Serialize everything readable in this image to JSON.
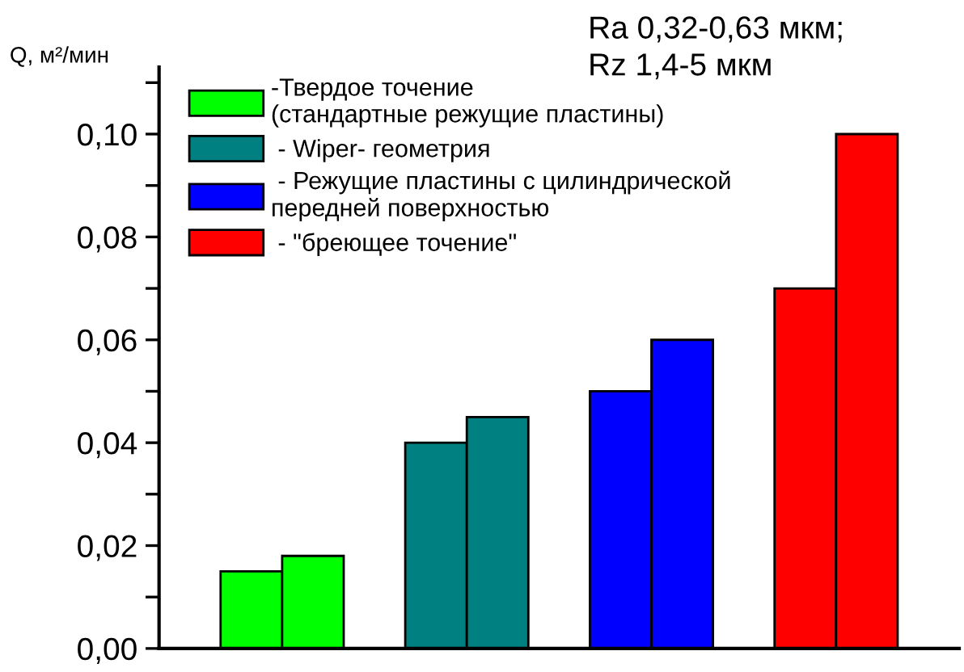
{
  "chart_data": {
    "type": "bar",
    "ylabel": "Q, м²/мин",
    "categories": [
      null,
      null,
      null,
      null,
      null,
      null,
      null,
      null
    ],
    "series": [
      {
        "name": "-Твердое точение\n(стандартные режущие пластины)",
        "color": "#00ff00",
        "values": [
          0.015,
          0.018,
          null,
          null,
          null,
          null,
          null,
          null
        ]
      },
      {
        "name": " - Wiper- геометрия",
        "color": "#008080",
        "values": [
          null,
          null,
          0.04,
          0.045,
          null,
          null,
          null,
          null
        ]
      },
      {
        "name": " - Режущие пластины с цилиндрической\nпередней поверхностью",
        "color": "#0000ff",
        "values": [
          null,
          null,
          null,
          null,
          0.05,
          0.06,
          null,
          null
        ]
      },
      {
        "name": " - \"бреющее точение\"",
        "color": "#ff0000",
        "values": [
          null,
          null,
          null,
          null,
          null,
          null,
          0.07,
          0.1
        ]
      }
    ],
    "ylim": [
      0,
      0.113
    ],
    "yticks": [
      {
        "value": 0,
        "label": "0,00"
      },
      {
        "value": 0.01,
        "label": null
      },
      {
        "value": 0.02,
        "label": "0,02"
      },
      {
        "value": 0.03,
        "label": null
      },
      {
        "value": 0.04,
        "label": "0,04"
      },
      {
        "value": 0.05,
        "label": null
      },
      {
        "value": 0.06,
        "label": "0,06"
      },
      {
        "value": 0.07,
        "label": null
      },
      {
        "value": 0.08,
        "label": "0,08"
      },
      {
        "value": 0.09,
        "label": null
      },
      {
        "value": 0.1,
        "label": "0,10"
      },
      {
        "value": 0.11,
        "label": null
      }
    ],
    "tick_labels": "y",
    "grid": false,
    "legend": "top left",
    "annotations": [
      "Ra 0,32-0,63 мкм;",
      "Rz 1,4-5 мкм"
    ]
  }
}
